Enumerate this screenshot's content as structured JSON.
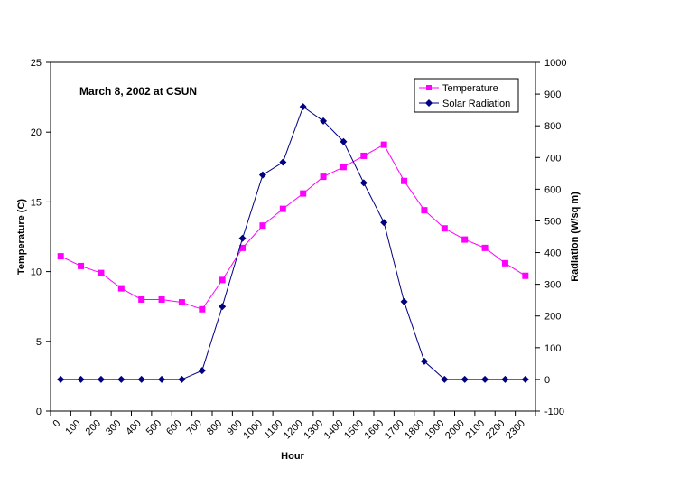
{
  "chart_data": {
    "type": "line",
    "annotation": "March 8, 2002 at CSUN",
    "xlabel": "Hour",
    "ylabel": "Temperature (C)",
    "y2label": "Radiation (W/sq m)",
    "categories": [
      "0",
      "100",
      "200",
      "300",
      "400",
      "500",
      "600",
      "700",
      "800",
      "900",
      "1000",
      "1100",
      "1200",
      "1300",
      "1400",
      "1500",
      "1600",
      "1700",
      "1800",
      "1900",
      "2000",
      "2100",
      "2200",
      "2300"
    ],
    "ylim": [
      0,
      25
    ],
    "yticks": [
      0,
      5,
      10,
      15,
      20,
      25
    ],
    "y2lim": [
      -100,
      1000
    ],
    "y2ticks": [
      -100,
      0,
      100,
      200,
      300,
      400,
      500,
      600,
      700,
      800,
      900,
      1000
    ],
    "grid": false,
    "legend_position": "top-right",
    "series": [
      {
        "name": "Temperature",
        "axis": "left",
        "color": "#ff00ff",
        "marker": "square",
        "values": [
          11.1,
          10.4,
          9.9,
          8.8,
          8.0,
          8.0,
          7.8,
          7.3,
          9.4,
          11.7,
          13.3,
          14.5,
          15.6,
          16.8,
          17.5,
          18.3,
          19.1,
          16.5,
          14.4,
          13.1,
          12.3,
          11.7,
          10.6,
          9.7
        ]
      },
      {
        "name": "Solar Radiation",
        "axis": "right",
        "color": "#000080",
        "marker": "diamond",
        "values": [
          0,
          0,
          0,
          0,
          0,
          0,
          0,
          28,
          230,
          445,
          645,
          685,
          860,
          815,
          750,
          620,
          495,
          245,
          57,
          0,
          0,
          0,
          0,
          0
        ]
      }
    ]
  }
}
